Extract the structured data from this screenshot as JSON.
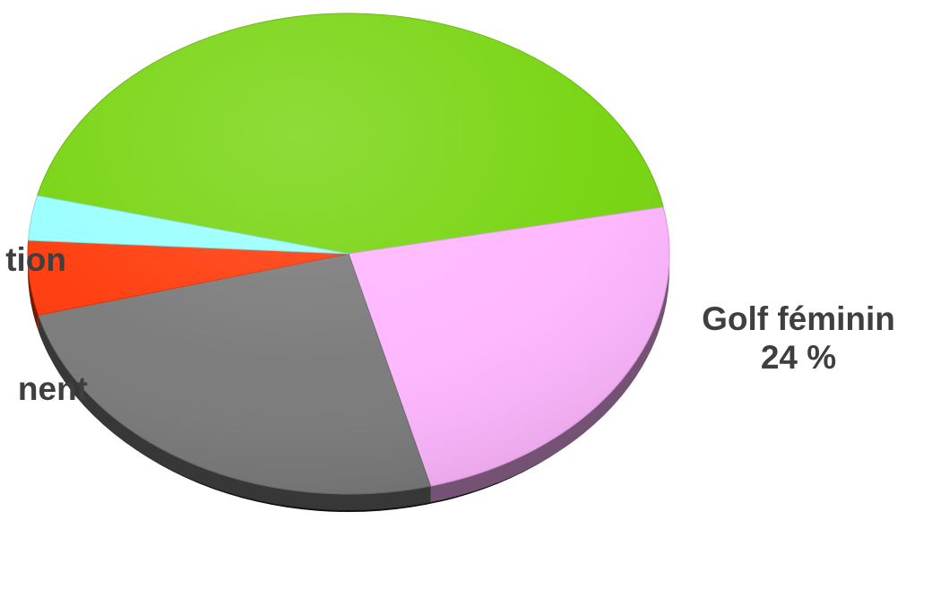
{
  "chart_data": {
    "type": "pie",
    "title": "",
    "slices": [
      {
        "label": "",
        "value": 43,
        "color": "#76d40e"
      },
      {
        "label": "Golf féminin",
        "value_text": "24 %",
        "value": 24,
        "color": "#ffb6ff"
      },
      {
        "label": "",
        "value": 25,
        "color": "#7a7a7a"
      },
      {
        "label": "…ment",
        "value": 5,
        "color": "#ff3a0a"
      },
      {
        "label": "…tion",
        "value": 3,
        "color": "#99ffff"
      }
    ],
    "legend": "none",
    "style": "3d-tilted"
  },
  "labels": {
    "right_name": "Golf féminin",
    "right_value": "24 %",
    "left_top": "tion",
    "left_bottom": "nent"
  }
}
